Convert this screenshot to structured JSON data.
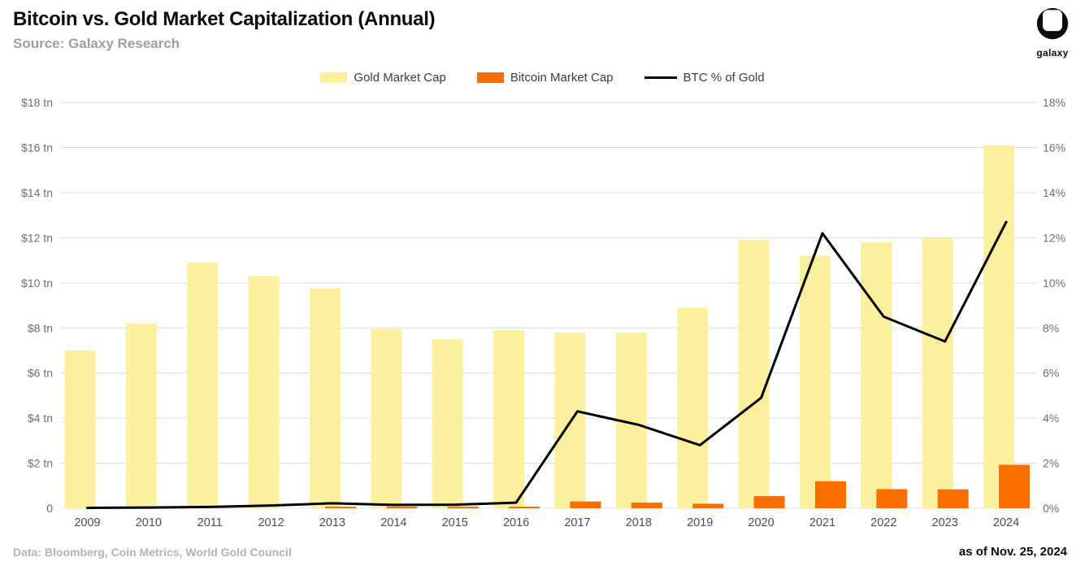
{
  "header": {
    "title": "Bitcoin vs. Gold Market Capitalization (Annual)",
    "subtitle": "Source: Galaxy Research",
    "logo_text": "galaxy"
  },
  "footer": {
    "data_note": "Data: Bloomberg, Coin Metrics, World Gold Council",
    "as_of": "as of Nov. 25, 2024"
  },
  "chart_data": {
    "type": "bar+line",
    "title": "Bitcoin vs. Gold Market Capitalization (Annual)",
    "legend_position": "top",
    "grid": true,
    "categories": [
      "2009",
      "2010",
      "2011",
      "2012",
      "2013",
      "2014",
      "2015",
      "2016",
      "2017",
      "2018",
      "2019",
      "2020",
      "2021",
      "2022",
      "2023",
      "2024"
    ],
    "series": [
      {
        "name": "Gold Market Cap",
        "type": "bar",
        "axis": "left",
        "unit": "$ tn",
        "color": "#FCF09E",
        "values": [
          7.0,
          8.2,
          10.9,
          10.3,
          9.75,
          7.95,
          7.5,
          7.9,
          7.8,
          7.8,
          8.9,
          11.9,
          11.2,
          11.8,
          12.0,
          16.1
        ]
      },
      {
        "name": "Bitcoin Market Cap",
        "type": "bar",
        "axis": "left",
        "unit": "$ tn",
        "color": "#FA6E00",
        "values": [
          0,
          0,
          0,
          0,
          0.02,
          0.01,
          0.01,
          0.02,
          0.3,
          0.25,
          0.2,
          0.54,
          1.2,
          0.85,
          0.84,
          1.93
        ]
      },
      {
        "name": "BTC % of Gold",
        "type": "line",
        "axis": "right",
        "unit": "%",
        "color": "#000000",
        "values": [
          0.02,
          0.03,
          0.06,
          0.12,
          0.22,
          0.15,
          0.16,
          0.25,
          4.3,
          3.7,
          2.8,
          4.9,
          12.2,
          8.5,
          7.4,
          12.7
        ]
      }
    ],
    "left_axis": {
      "min": 0,
      "max": 18,
      "step": 2,
      "ticks": [
        "$18 tn",
        "$16 tn",
        "$14 tn",
        "$12 tn",
        "$10 tn",
        "$8 tn",
        "$6 tn",
        "$4 tn",
        "$2 tn",
        "0"
      ]
    },
    "right_axis": {
      "min": 0,
      "max": 18,
      "step": 2,
      "ticks": [
        "18%",
        "16%",
        "14%",
        "12%",
        "10%",
        "8%",
        "6%",
        "4%",
        "2%",
        "0%"
      ]
    },
    "grid_color": "#DCDCDC"
  }
}
